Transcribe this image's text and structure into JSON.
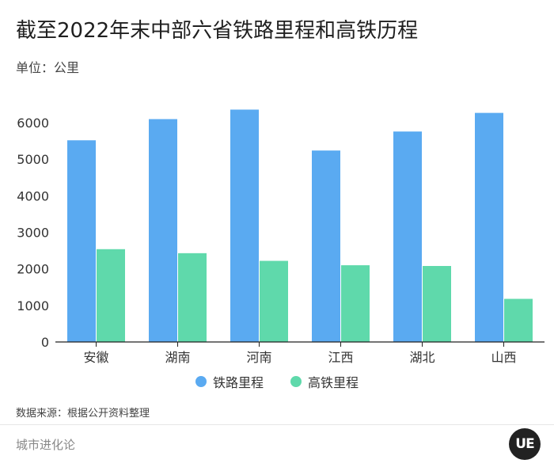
{
  "title": "截至2022年末中部六省铁路里程和高铁历程",
  "unit_label": "单位：公里",
  "source": "数据来源：根据公开资料整理",
  "brand": "城市进化论",
  "logo_text": "UE",
  "colors": {
    "railway": "#5aaaf1",
    "hsr": "#5fd9ab",
    "axis": "#222222"
  },
  "chart_data": {
    "type": "bar",
    "categories": [
      "安徽",
      "湖南",
      "河南",
      "江西",
      "湖北",
      "山西"
    ],
    "series": [
      {
        "name": "铁路里程",
        "values": [
          5520,
          6100,
          6360,
          5240,
          5760,
          6270
        ]
      },
      {
        "name": "高铁里程",
        "values": [
          2540,
          2430,
          2220,
          2100,
          2080,
          1180
        ]
      }
    ],
    "ylim": [
      0,
      6500
    ],
    "yticks": [
      0,
      1000,
      2000,
      3000,
      4000,
      5000,
      6000
    ],
    "legend": "bottom-center",
    "grid": false
  }
}
